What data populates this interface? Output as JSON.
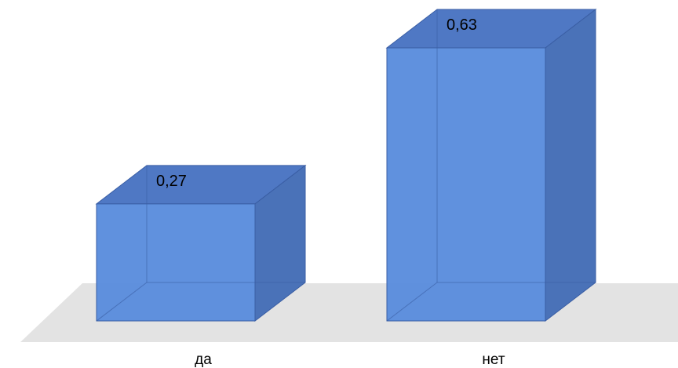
{
  "chart_data": {
    "type": "bar",
    "style": "3d-box",
    "categories": [
      "да",
      "нет"
    ],
    "values": [
      0.27,
      0.63
    ],
    "data_labels": [
      "0,27",
      "0,63"
    ],
    "ylim": [
      0,
      0.7
    ],
    "grid": false,
    "legend": "none",
    "colors": {
      "front": "#5b8ddd",
      "top": "#4f78c4",
      "side": "#4a72b8",
      "edge": "#3a5ea4",
      "floor": "#e3e3e3"
    }
  }
}
